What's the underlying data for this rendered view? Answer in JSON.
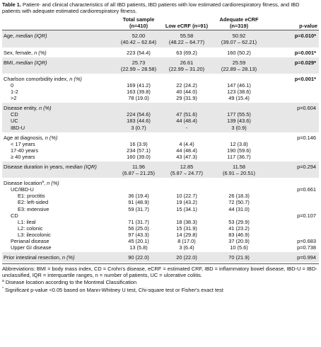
{
  "caption": {
    "label": "Table 1.",
    "text": "Patient- and clinical characteristics of all IBD patients, IBD patients with low estimated cardiorespiratory fitness, and IBD patients with adequate estimated cardiorespiratory fitness."
  },
  "header": {
    "columns": [
      [
        "Total sample",
        "(n=410)"
      ],
      [
        "Low eCRF (n=91)"
      ],
      [
        "Adequate eCRF",
        "(n=319)"
      ]
    ],
    "p": "p-value"
  },
  "groups": [
    {
      "label": "Age,",
      "em": "median (IQR)",
      "values": [
        [
          "52.00",
          "(40.42 – 62.64)"
        ],
        [
          "55.58",
          "(48.22 – 64.77)"
        ],
        [
          "50.92",
          "(39.07 – 62.21)"
        ]
      ],
      "p": "p=0.010*"
    },
    {
      "label": "Sex, female,",
      "em": "n (%)",
      "values": [
        [
          "223 (54.4)"
        ],
        [
          "63 (69.2)"
        ],
        [
          "160 (50.2)"
        ]
      ],
      "p": "p=0.001*"
    },
    {
      "label": "BMI,",
      "em": "median (IQR)",
      "values": [
        [
          "25.73",
          "(22.99 – 28.58)"
        ],
        [
          "26.61",
          "(22.99 – 31.20)"
        ],
        [
          "25.59",
          "(22.89 – 28.13)"
        ]
      ],
      "p": "p=0.029*"
    },
    {
      "label": "Charlson comorbidity index,",
      "em": "n (%)",
      "p": "p<0.001*",
      "items": [
        {
          "label": "0",
          "values": [
            [
              "169 (41.2)"
            ],
            [
              "22 (24.2)"
            ],
            [
              "147 (46.1)"
            ]
          ]
        },
        {
          "label": "1-2",
          "values": [
            [
              "163 (39.8)"
            ],
            [
              "40 (44.0)"
            ],
            [
              "123 (38.6)"
            ]
          ]
        },
        {
          "label": ">2",
          "values": [
            [
              "78 (19.0)"
            ],
            [
              "29 (31.9)"
            ],
            [
              "49 (15.4)"
            ]
          ]
        }
      ]
    },
    {
      "label": "Disease entity,",
      "em": "n (%)",
      "p": "p=0.604",
      "items": [
        {
          "label": "CD",
          "values": [
            [
              "224 (54.6)"
            ],
            [
              "47 (51.6)"
            ],
            [
              "177 (55.5)"
            ]
          ]
        },
        {
          "label": "UC",
          "values": [
            [
              "183 (44.6)"
            ],
            [
              "44 (48.4)"
            ],
            [
              "139 (43.6)"
            ]
          ]
        },
        {
          "label": "IBD-U",
          "values": [
            [
              "3 (0.7)"
            ],
            [
              "-"
            ],
            [
              "3 (0.9)"
            ]
          ]
        }
      ]
    },
    {
      "label": "Age at diagnosis,",
      "em": "n (%)",
      "p": "p=0.146",
      "items": [
        {
          "label": "< 17 years",
          "values": [
            [
              "16 (3.9)"
            ],
            [
              "4 (4.4)"
            ],
            [
              "12 (3.8)"
            ]
          ]
        },
        {
          "label": "17-40 years",
          "values": [
            [
              "234 (57.1)"
            ],
            [
              "44 (48.4)"
            ],
            [
              "190 (59.6)"
            ]
          ]
        },
        {
          "label": "≥ 40 years",
          "values": [
            [
              "160 (39.0)"
            ],
            [
              "43 (47.3)"
            ],
            [
              "117 (36.7)"
            ]
          ]
        }
      ]
    },
    {
      "label": "Disease duration in years,",
      "em": "median (IQR)",
      "values": [
        [
          "11.96",
          "(6.87 – 21.25)"
        ],
        [
          "12.85",
          "(5.87 – 24.77)"
        ],
        [
          "11.58",
          "(6.91 – 20.51)"
        ]
      ],
      "p": "p=0.294"
    },
    {
      "label": "Disease location",
      "sup": "a",
      "after": ",",
      "em": "n (%)",
      "items": [
        {
          "label": "UC/IBD-U",
          "p": "p=0.661",
          "items": [
            {
              "label": "E1: proctitis",
              "values": [
                [
                  "36 (19.4)"
                ],
                [
                  "10 (22.7)"
                ],
                [
                  "26 (18.3)"
                ]
              ]
            },
            {
              "label": "E2: left-sided",
              "values": [
                [
                  "91 (48.9)"
                ],
                [
                  "19 (43.2)"
                ],
                [
                  "72 (50.7)"
                ]
              ]
            },
            {
              "label": "E3: extensive",
              "values": [
                [
                  "59 (31.7)"
                ],
                [
                  "15 (34.1)"
                ],
                [
                  "44 (31.0)"
                ]
              ]
            }
          ]
        },
        {
          "label": "CD",
          "p": "p=0.107",
          "items": [
            {
              "label": "L1: ileal",
              "values": [
                [
                  "71 (31.7)"
                ],
                [
                  "18 (38.3)"
                ],
                [
                  "53 (29.9)"
                ]
              ]
            },
            {
              "label": "L2: colonic",
              "values": [
                [
                  "56 (25.0)"
                ],
                [
                  "15 (31.9)"
                ],
                [
                  "41 (23.2)"
                ]
              ]
            },
            {
              "label": "L3: ileocolonic",
              "values": [
                [
                  "97 (43.3)"
                ],
                [
                  "14 (29.8)"
                ],
                [
                  "83 (46.9)"
                ]
              ]
            }
          ]
        },
        {
          "label": "Perianal disease",
          "values": [
            [
              "45 (20.1)"
            ],
            [
              "8 (17.0)"
            ],
            [
              "37 (20.9)"
            ]
          ],
          "p": "p=0.683"
        },
        {
          "label": "Upper GI disease",
          "values": [
            [
              "13 (5.8)"
            ],
            [
              "3 (6.4)"
            ],
            [
              "10 (5.6)"
            ]
          ],
          "p": "p=0.738"
        }
      ]
    },
    {
      "label": "Prior intestinal resection,",
      "em": "n (%)",
      "values": [
        [
          "90 (22.0)"
        ],
        [
          "20 (22.0)"
        ],
        [
          "70 (21.9)"
        ]
      ],
      "p": "p=0.994"
    }
  ],
  "footnotes": [
    "Abbreviations: BMI = body mass index, CD = Crohn's disease, eCRF = estimated CRF, IBD = inflammatory bowel disease, IBD-U = IBD-unclassified, IQR = interquartile ranges, n = number of patients, UC = ulcerative colitis.",
    {
      "sup": "a",
      "text": "Disease location according to the Montreal Classification"
    },
    {
      "sup": "*",
      "text": "Significant p-value <0.05 based on Mann-Whitney U test, Chi-square test or Fisher's exact test"
    }
  ]
}
